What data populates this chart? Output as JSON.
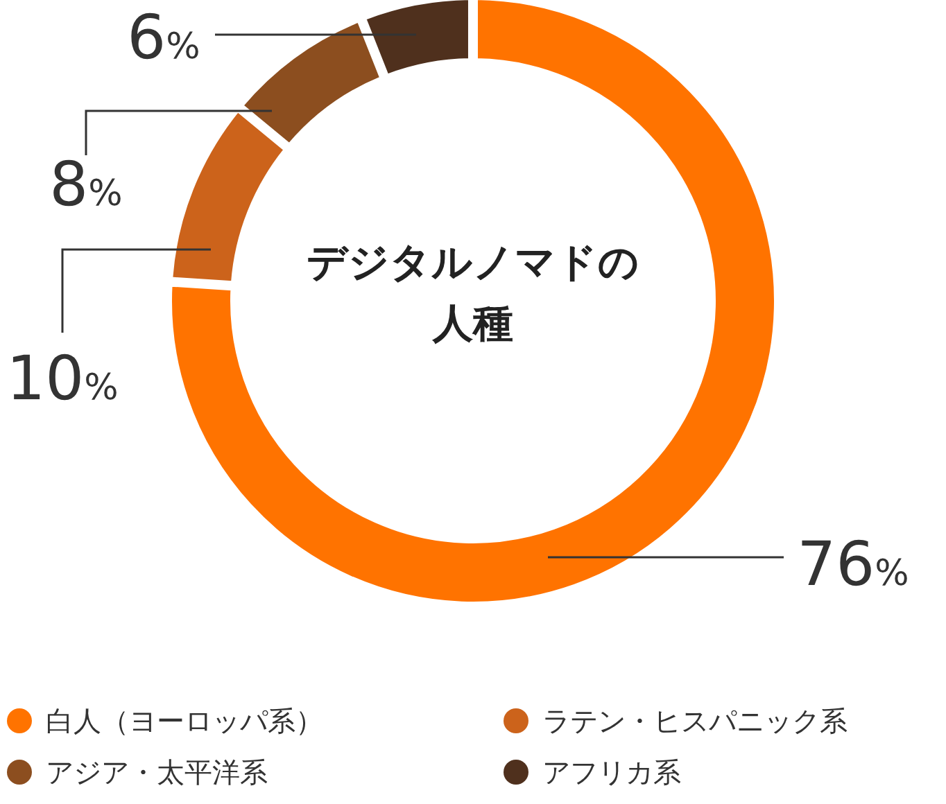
{
  "chart_data": {
    "type": "donut",
    "title": "デジタルノマドの人種",
    "categories": [
      "白人（ヨーロッパ系）",
      "ラテン・ヒスパニック系",
      "アジア・太平洋系",
      "アフリカ系"
    ],
    "values": [
      76,
      10,
      8,
      6
    ],
    "colors": [
      "#ff7300",
      "#cc631b",
      "#8c4e1f",
      "#4f301d"
    ],
    "value_labels": [
      "76%",
      "10%",
      "8%",
      "6%"
    ],
    "legend": "bottom"
  }
}
